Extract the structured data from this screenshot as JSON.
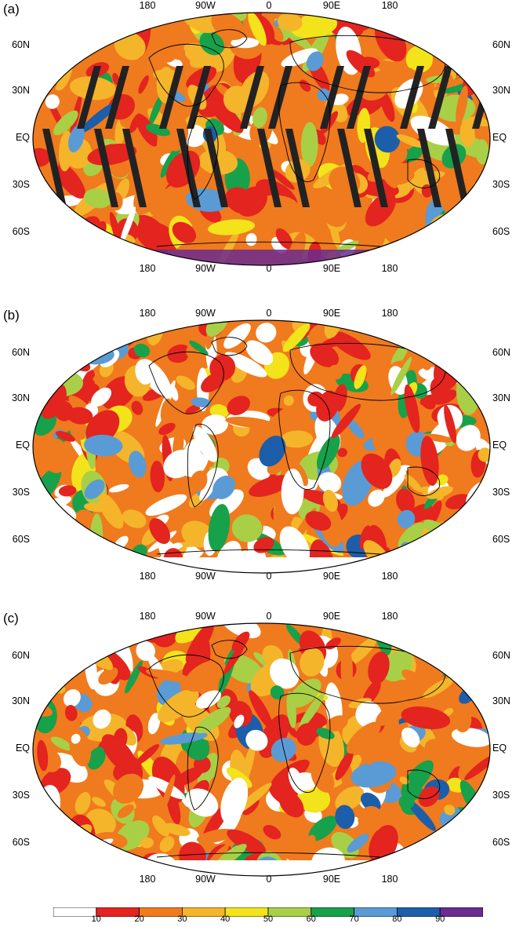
{
  "panels": [
    {
      "label": "(a)",
      "lon_top": [
        "180",
        "90W",
        "0",
        "90E",
        "180"
      ],
      "lon_bottom": [
        "180",
        "90W",
        "0",
        "90E",
        "180"
      ],
      "lat_left": [
        "60N",
        "30N",
        "EQ",
        "30S",
        "60S"
      ],
      "lat_right": [
        "60N",
        "30N",
        "EQ",
        "30S",
        "60S"
      ],
      "has_swath_gaps": true
    },
    {
      "label": "(b)",
      "lon_top": [
        "180",
        "90W",
        "0",
        "90E",
        "180"
      ],
      "lon_bottom": [
        "180",
        "90W",
        "0",
        "90E",
        "180"
      ],
      "lat_left": [
        "60N",
        "30N",
        "EQ",
        "30S",
        "60S"
      ],
      "lat_right": [
        "60N",
        "30N",
        "EQ",
        "30S",
        "60S"
      ],
      "has_swath_gaps": false
    },
    {
      "label": "(c)",
      "lon_top": [
        "180",
        "90W",
        "0",
        "90E",
        "180"
      ],
      "lon_bottom": [
        "180",
        "90W",
        "0",
        "90E",
        "180"
      ],
      "lat_left": [
        "60N",
        "30N",
        "EQ",
        "30S",
        "60S"
      ],
      "lat_right": [
        "60N",
        "30N",
        "EQ",
        "30S",
        "60S"
      ],
      "has_swath_gaps": false
    }
  ],
  "colorbar": {
    "ticks": [
      "10",
      "20",
      "30",
      "40",
      "50",
      "60",
      "70",
      "80",
      "90"
    ],
    "colors": [
      "#ffffff",
      "#e3241f",
      "#f07a1e",
      "#f5b52a",
      "#f3e31b",
      "#a9cf46",
      "#17a14a",
      "#5a9bd5",
      "#1c5ea9",
      "#6a2c8f"
    ]
  }
}
